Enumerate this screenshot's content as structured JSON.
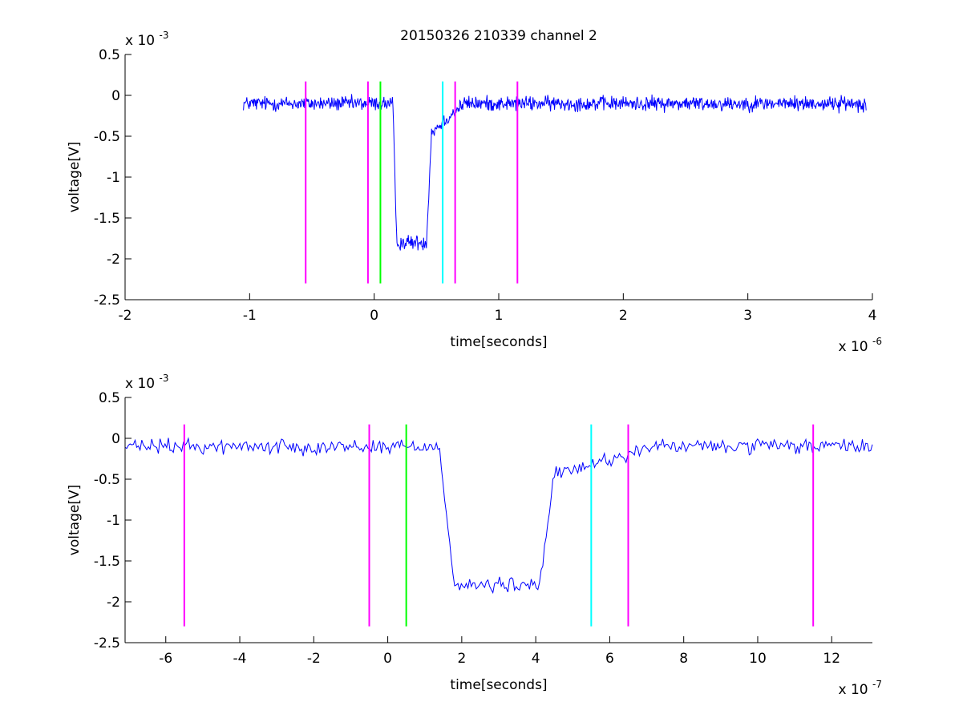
{
  "chart_data": [
    {
      "type": "line",
      "title": "20150326 210339 channel 2",
      "xlabel": "time[seconds]",
      "ylabel": "voltage[V]",
      "x_exponent_label": "x 10",
      "x_exponent": "-6",
      "y_exponent_label": "x 10",
      "y_exponent": "-3",
      "xlim": [
        -2,
        4
      ],
      "ylim": [
        -2.5,
        0.5
      ],
      "xticks": [
        -2,
        -1,
        0,
        1,
        2,
        3,
        4
      ],
      "xtick_labels": [
        "-2",
        "-1",
        "0",
        "1",
        "2",
        "3",
        "4"
      ],
      "yticks": [
        -2.5,
        -2,
        -1.5,
        -1,
        -0.5,
        0,
        0.5
      ],
      "ytick_labels": [
        "-2.5",
        "-2",
        "-1.5",
        "-1",
        "-0.5",
        "0",
        "0.5"
      ],
      "grid": false,
      "signal": {
        "color": "#0000ff",
        "x_range": [
          -1.05,
          3.95
        ],
        "baseline": -0.1,
        "noise": 0.09,
        "drop_start": 0.15,
        "drop_end": 0.18,
        "low_level": -1.8,
        "rise_start": 0.42,
        "rise_end": 0.46,
        "recover_end": 0.72,
        "points": 1100
      },
      "markers": [
        {
          "x": -0.55,
          "color": "#ff00ff",
          "y_range": [
            -2.3,
            0.17
          ]
        },
        {
          "x": -0.05,
          "color": "#ff00ff",
          "y_range": [
            -2.3,
            0.17
          ]
        },
        {
          "x": 0.05,
          "color": "#00ff00",
          "y_range": [
            -2.3,
            0.17
          ]
        },
        {
          "x": 0.55,
          "color": "#00ffff",
          "y_range": [
            -2.3,
            0.17
          ]
        },
        {
          "x": 0.65,
          "color": "#ff00ff",
          "y_range": [
            -2.3,
            0.17
          ]
        },
        {
          "x": 1.15,
          "color": "#ff00ff",
          "y_range": [
            -2.3,
            0.17
          ]
        }
      ]
    },
    {
      "type": "line",
      "title": "",
      "xlabel": "time[seconds]",
      "ylabel": "voltage[V]",
      "x_exponent_label": "x 10",
      "x_exponent": "-7",
      "y_exponent_label": "x 10",
      "y_exponent": "-3",
      "xlim": [
        -7.1,
        13.1
      ],
      "ylim": [
        -2.5,
        0.5
      ],
      "xticks": [
        -6,
        -4,
        -2,
        0,
        2,
        4,
        6,
        8,
        10,
        12
      ],
      "xtick_labels": [
        "-6",
        "-4",
        "-2",
        "0",
        "2",
        "4",
        "6",
        "8",
        "10",
        "12"
      ],
      "yticks": [
        -2.5,
        -2,
        -1.5,
        -1,
        -0.5,
        0,
        0.5
      ],
      "ytick_labels": [
        "-2.5",
        "-2",
        "-1.5",
        "-1",
        "-0.5",
        "0",
        "0.5"
      ],
      "grid": false,
      "signal": {
        "color": "#0000ff",
        "x_range": [
          -7.1,
          13.1
        ],
        "baseline": -0.1,
        "noise": 0.09,
        "drop_start": 1.4,
        "drop_end": 1.8,
        "low_level": -1.8,
        "rise_start": 4.1,
        "rise_end": 4.5,
        "recover_end": 7.2,
        "points": 450
      },
      "markers": [
        {
          "x": -5.5,
          "color": "#ff00ff",
          "y_range": [
            -2.3,
            0.17
          ]
        },
        {
          "x": -0.5,
          "color": "#ff00ff",
          "y_range": [
            -2.3,
            0.17
          ]
        },
        {
          "x": 0.5,
          "color": "#00ff00",
          "y_range": [
            -2.3,
            0.17
          ]
        },
        {
          "x": 5.5,
          "color": "#00ffff",
          "y_range": [
            -2.3,
            0.17
          ]
        },
        {
          "x": 6.5,
          "color": "#ff00ff",
          "y_range": [
            -2.3,
            0.17
          ]
        },
        {
          "x": 11.5,
          "color": "#ff00ff",
          "y_range": [
            -2.3,
            0.17
          ]
        }
      ]
    }
  ]
}
